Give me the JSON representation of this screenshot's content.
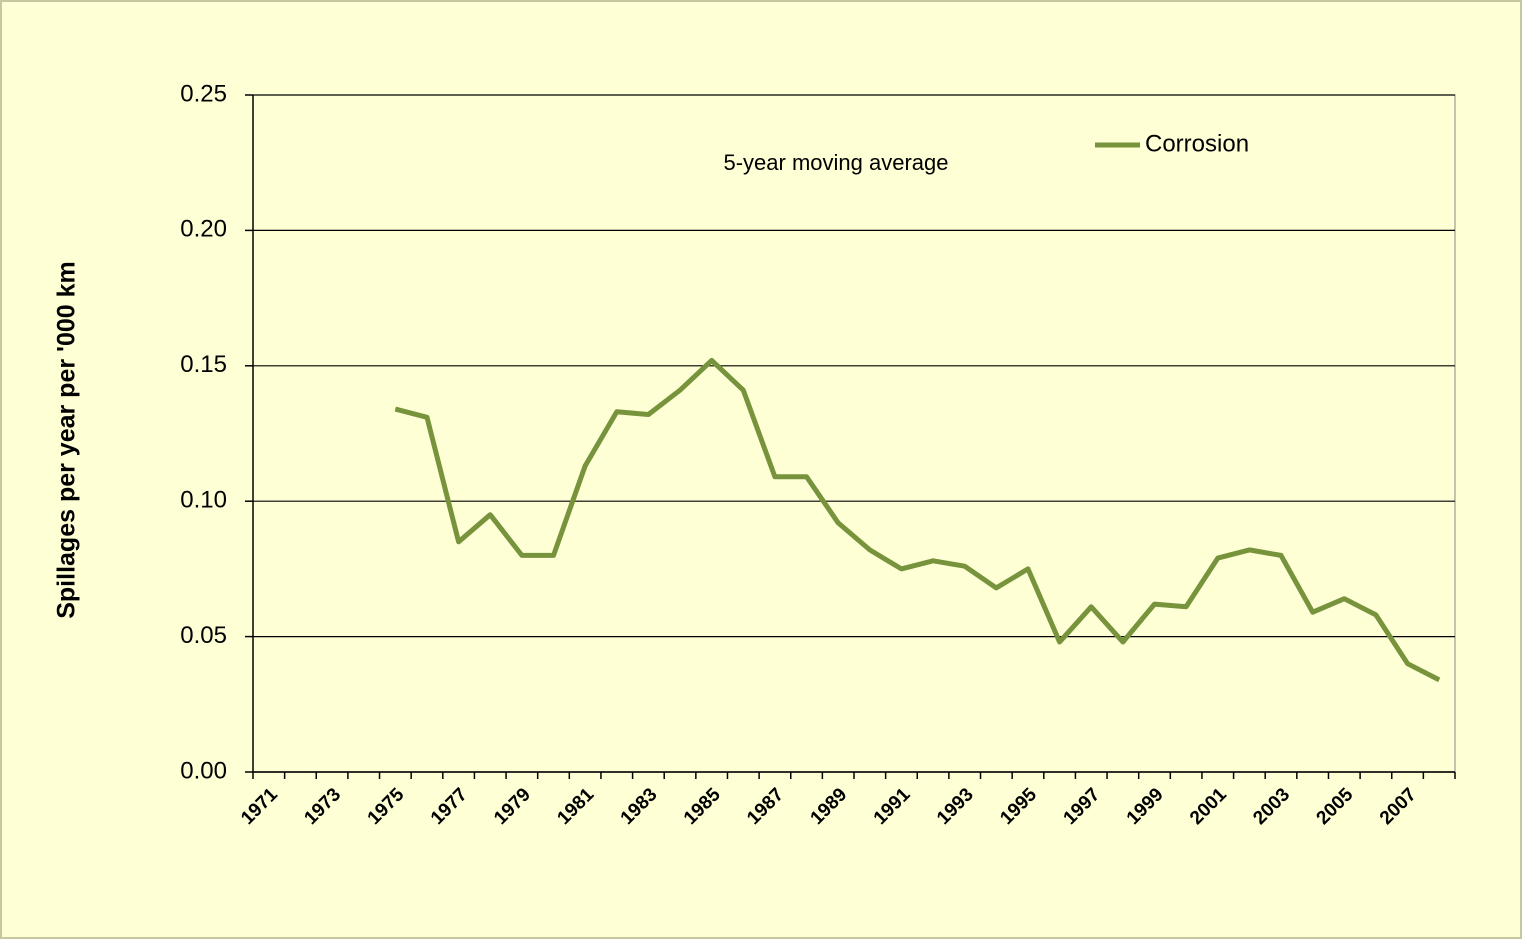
{
  "chart_data": {
    "type": "line",
    "ylabel": "Spillages per year per '000 km",
    "annotation": "5-year moving average",
    "categories": [
      "1971",
      null,
      "1973",
      null,
      "1975",
      null,
      "1977",
      null,
      "1979",
      null,
      "1981",
      null,
      "1983",
      null,
      "1985",
      null,
      "1987",
      null,
      "1989",
      null,
      "1991",
      null,
      "1993",
      null,
      "1995",
      null,
      "1997",
      null,
      "1999",
      null,
      "2001",
      null,
      "2003",
      null,
      "2005",
      null,
      "2007",
      null
    ],
    "series": [
      {
        "name": "Corrosion",
        "color": "#77933c",
        "values": [
          null,
          null,
          null,
          null,
          0.134,
          0.131,
          0.085,
          0.095,
          0.08,
          0.08,
          0.113,
          0.133,
          0.132,
          0.141,
          0.152,
          0.141,
          0.109,
          0.109,
          0.092,
          0.082,
          0.075,
          0.078,
          0.076,
          0.068,
          0.075,
          0.048,
          0.061,
          0.048,
          0.062,
          0.061,
          0.079,
          0.082,
          0.08,
          0.059,
          0.064,
          0.058,
          0.04,
          0.034
        ]
      }
    ],
    "ylim": [
      0,
      0.25
    ],
    "yticks": [
      {
        "value": 0,
        "label": "0.00"
      },
      0.05,
      {
        "value": 0.1,
        "label": "0.10"
      },
      0.15,
      {
        "value": 0.2,
        "label": "0.20"
      },
      0.25
    ],
    "grid": true,
    "legend": "top-right"
  }
}
